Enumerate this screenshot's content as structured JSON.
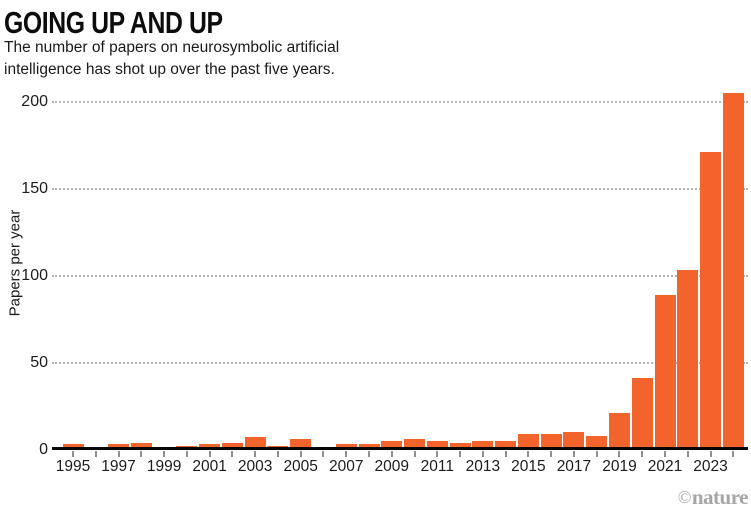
{
  "header": {
    "title": "GOING UP AND UP",
    "subtitle": "The number of papers on neurosymbolic artificial intelligence has shot up over the past five years."
  },
  "chart_data": {
    "type": "bar",
    "title": "GOING UP AND UP",
    "subtitle": "The number of papers on neurosymbolic artificial intelligence has shot up over the past five years.",
    "xlabel": "",
    "ylabel": "Papers per year",
    "ylim": [
      0,
      210
    ],
    "yticks": [
      0,
      50,
      100,
      150,
      200
    ],
    "xtick_labels": [
      "1995",
      "1997",
      "1999",
      "2001",
      "2003",
      "2005",
      "2007",
      "2009",
      "2011",
      "2013",
      "2015",
      "2017",
      "2019",
      "2021",
      "2023"
    ],
    "grid": "horizontal-dotted",
    "legend": "none",
    "bar_color": "#F2642C",
    "categories": [
      1995,
      1996,
      1997,
      1998,
      1999,
      2000,
      2001,
      2002,
      2003,
      2004,
      2005,
      2006,
      2007,
      2008,
      2009,
      2010,
      2011,
      2012,
      2013,
      2014,
      2015,
      2016,
      2017,
      2018,
      2019,
      2020,
      2021,
      2022,
      2023,
      2024
    ],
    "values": [
      3,
      1,
      3,
      4,
      1,
      2,
      3,
      4,
      7,
      2,
      6,
      1,
      3,
      3,
      5,
      6,
      5,
      4,
      5,
      5,
      9,
      9,
      10,
      8,
      21,
      41,
      89,
      103,
      171,
      205
    ]
  },
  "footer": {
    "credit_symbol": "©",
    "credit_name": "nature"
  },
  "colors": {
    "bar": "#F2642C",
    "axis": "#050505",
    "gridline": "#b5b5b5",
    "tick": "#8e8e8e",
    "text": "#1c1c1c",
    "credit": "#a6a6a6"
  }
}
